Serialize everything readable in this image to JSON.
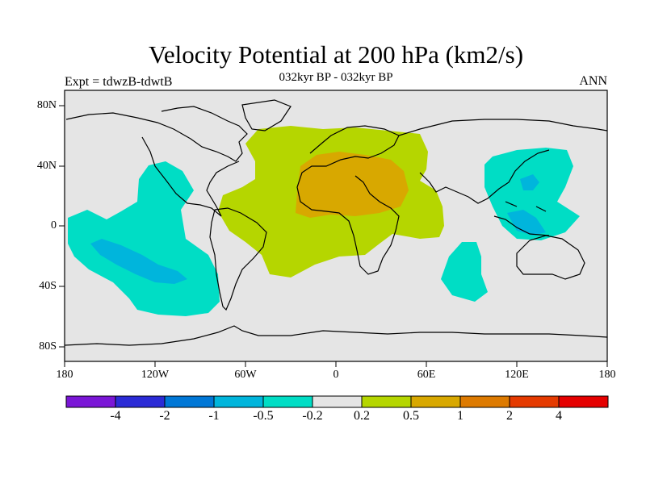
{
  "map": {
    "title": "Velocity Potential at 200 hPa (km2/s)",
    "subtitle": "032kyr BP - 032kyr BP",
    "left_note": "Expt = tdwzB-tdwtB",
    "right_note": "ANN",
    "lat_labels": [
      "80N",
      "40N",
      "0",
      "40S",
      "80S"
    ],
    "lon_labels": [
      "180",
      "120W",
      "60W",
      "0",
      "60E",
      "120E",
      "180"
    ],
    "background_color": "#e5e5e5"
  },
  "colorbar": {
    "labels": [
      "-4",
      "-2",
      "-1",
      "-0.5",
      "-0.2",
      "0.2",
      "0.5",
      "1",
      "2",
      "4"
    ],
    "colors": [
      "#7a16d6",
      "#2b2bd6",
      "#0077d6",
      "#00b5dc",
      "#00ddc5",
      "#e5e5e5",
      "#b5d600",
      "#d8a800",
      "#dd7a00",
      "#e53a00",
      "#e50000"
    ]
  }
}
